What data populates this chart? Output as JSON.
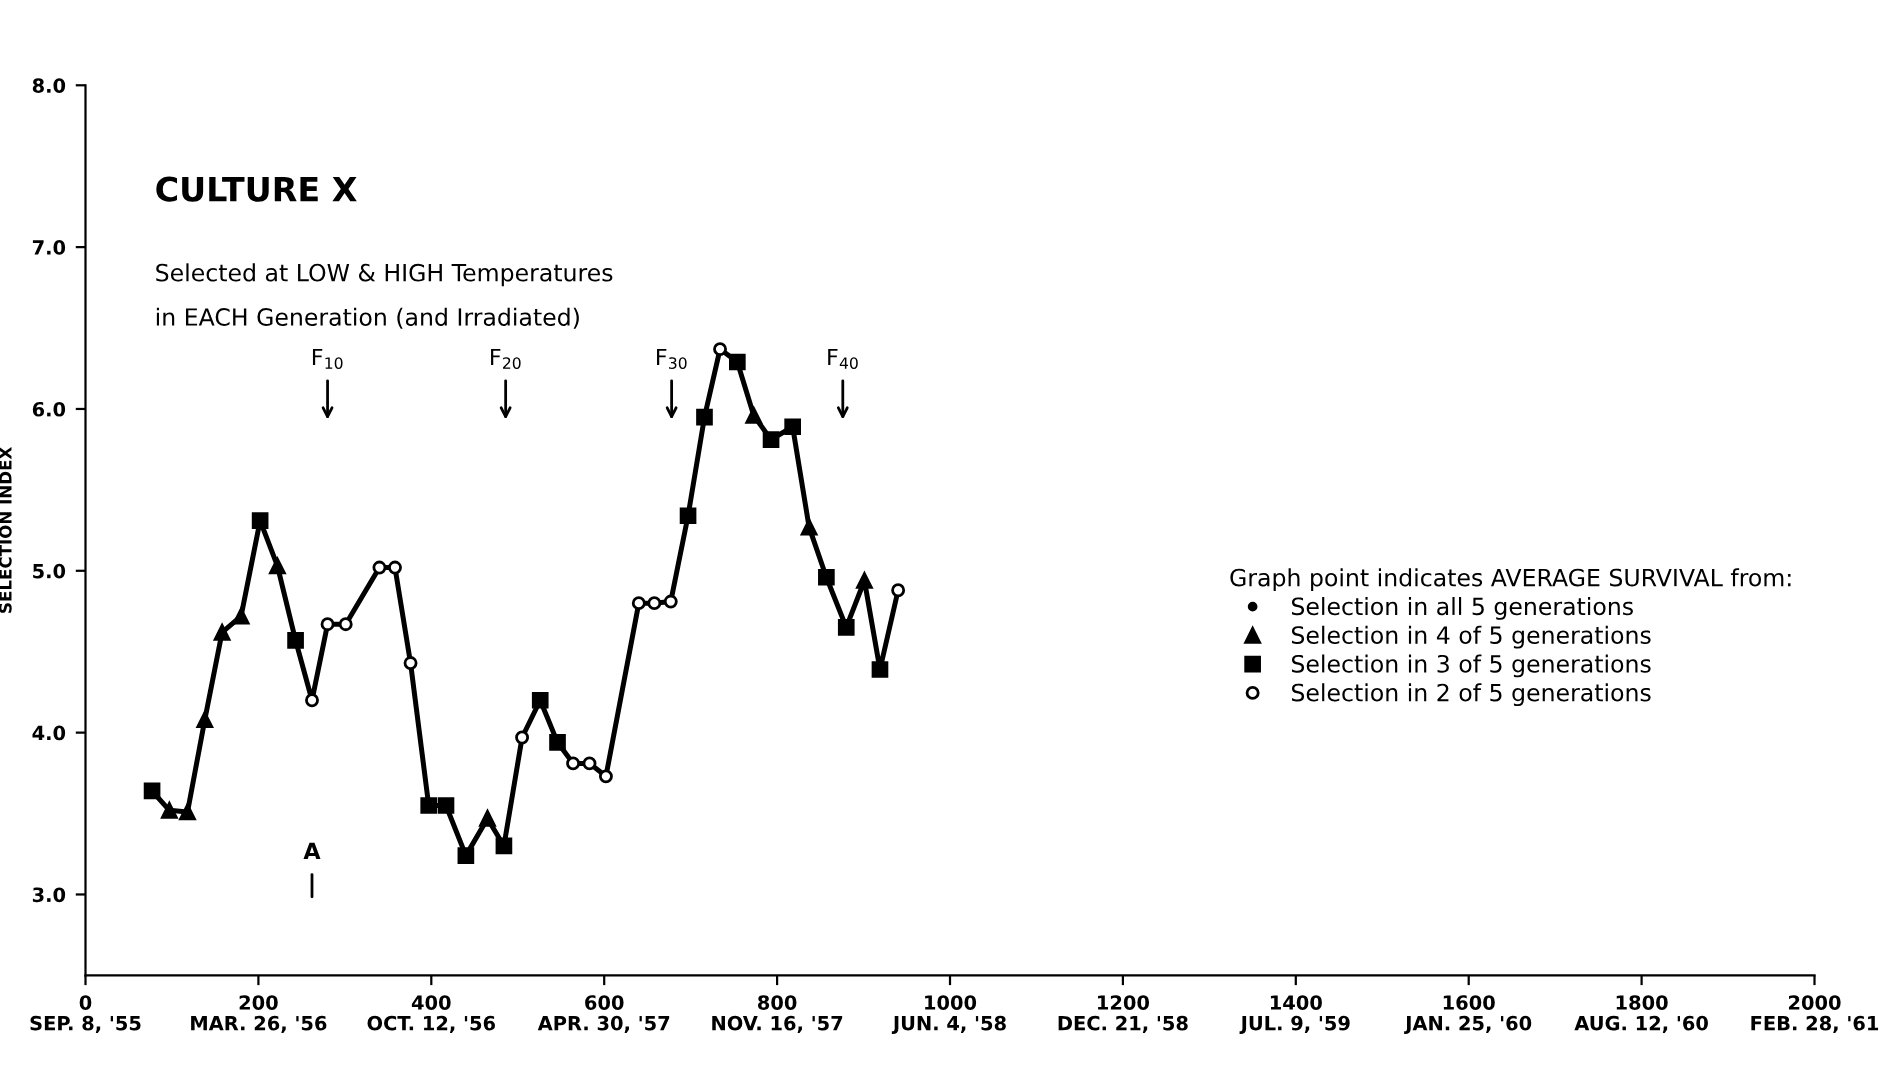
{
  "chart_data": {
    "type": "scatter",
    "title": "CULTURE X",
    "subtitle": "Selected at LOW & HIGH Temperatures\nin EACH Generation (and Irradiated)",
    "ylabel": "SELECTION INDEX",
    "legend_title": "Graph point indicates AVERAGE SURVIVAL from:",
    "series": [
      {
        "type": "line",
        "color": "#000000",
        "marker": "none",
        "line_style": "solid",
        "x": [
          77,
          97,
          118,
          138,
          158,
          180,
          202,
          222,
          243,
          262,
          280,
          301,
          340,
          358,
          376,
          397,
          417,
          440,
          465,
          484,
          505,
          526,
          546,
          564,
          583,
          602,
          640,
          658,
          677,
          697,
          716,
          734,
          754,
          773,
          793,
          818,
          837,
          857,
          880,
          901,
          919,
          940
        ],
        "values": [
          3.64,
          3.52,
          3.51,
          4.08,
          4.62,
          4.72,
          5.31,
          5.03,
          4.57,
          4.2,
          4.67,
          4.67,
          5.02,
          5.02,
          4.43,
          3.55,
          3.55,
          3.24,
          3.47,
          3.3,
          3.97,
          4.2,
          3.94,
          3.81,
          3.81,
          3.73,
          4.8,
          4.8,
          4.81,
          5.34,
          5.95,
          6.37,
          6.29,
          5.96,
          5.81,
          5.89,
          5.27,
          4.96,
          4.65,
          4.94,
          4.39,
          4.88
        ]
      },
      {
        "name": "Selection in all 5 generations",
        "color": "#000000",
        "marker": "point"
      },
      {
        "name": "Selection in 4 of 5 generations",
        "color": "#000000",
        "marker": "triangle",
        "x": [
          97,
          118,
          138,
          158,
          180,
          222,
          465,
          773,
          837,
          901
        ],
        "values": [
          3.52,
          3.51,
          4.08,
          4.62,
          4.72,
          5.03,
          3.47,
          5.96,
          5.27,
          4.94
        ]
      },
      {
        "name": "Selection in 3 of 5 generations",
        "color": "#000000",
        "marker": "square",
        "x": [
          77,
          202,
          243,
          397,
          417,
          440,
          484,
          526,
          546,
          697,
          716,
          754,
          793,
          818,
          857,
          880,
          919
        ],
        "values": [
          3.64,
          5.31,
          4.57,
          3.55,
          3.55,
          3.24,
          3.3,
          4.2,
          3.94,
          5.34,
          5.95,
          6.29,
          5.81,
          5.89,
          4.96,
          4.65,
          4.39
        ]
      },
      {
        "name": "Selection in 2 of 5 generations",
        "color": "#000000",
        "marker": "circle",
        "x": [
          262,
          280,
          301,
          340,
          358,
          376,
          505,
          564,
          583,
          602,
          640,
          658,
          677,
          734,
          940
        ],
        "values": [
          4.2,
          4.67,
          4.67,
          5.02,
          5.02,
          4.43,
          3.97,
          3.81,
          3.81,
          3.73,
          4.8,
          4.8,
          4.81,
          6.37,
          4.88
        ]
      }
    ],
    "annotations": [
      "F$_{10}$",
      "F$_{20}$",
      "F$_{30}$",
      "F$_{40}$",
      "A",
      "SEP. 8, '55",
      "MAR. 26, '56",
      "OCT. 12, '56",
      "APR. 30, '57",
      "NOV. 16, '57",
      "JUN. 4, '58",
      "DEC. 21, '58",
      "JUL. 9, '59",
      "JAN. 25, '60",
      "AUG. 12, '60",
      "FEB. 28, '61"
    ],
    "xlim": [
      0,
      2000
    ],
    "xticks": [
      0,
      200,
      400,
      600,
      800,
      1000,
      1200,
      1400,
      1600,
      1800,
      2000
    ],
    "ylim": [
      2.5,
      8.0
    ],
    "yticks": [
      {
        "value": 3,
        "label": "3.0"
      },
      {
        "value": 4,
        "label": "4.0"
      },
      {
        "value": 5,
        "label": "5.0"
      },
      {
        "value": 6,
        "label": "6.0"
      },
      {
        "value": 7,
        "label": "7.0"
      },
      {
        "value": 8,
        "label": "8.0"
      }
    ],
    "grid": false,
    "legend": "right"
  }
}
